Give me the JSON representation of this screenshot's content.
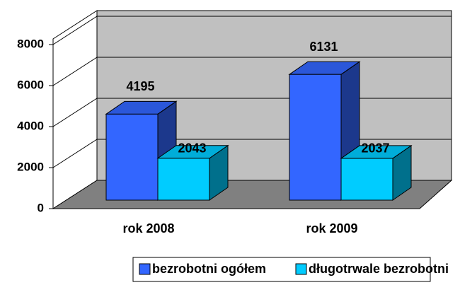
{
  "chart_data": {
    "type": "bar3d",
    "categories": [
      "rok 2008",
      "rok 2009"
    ],
    "series": [
      {
        "name": "bezrobotni ogółem",
        "color": "#3366ff",
        "values": [
          4195,
          6131
        ]
      },
      {
        "name": "długotrwale bezrobotni",
        "color": "#00ccff",
        "values": [
          2043,
          2037
        ]
      }
    ],
    "ylim": [
      0,
      8000
    ],
    "yticks": [
      0,
      2000,
      4000,
      6000,
      8000
    ],
    "grid": true,
    "legend": "bottom"
  }
}
